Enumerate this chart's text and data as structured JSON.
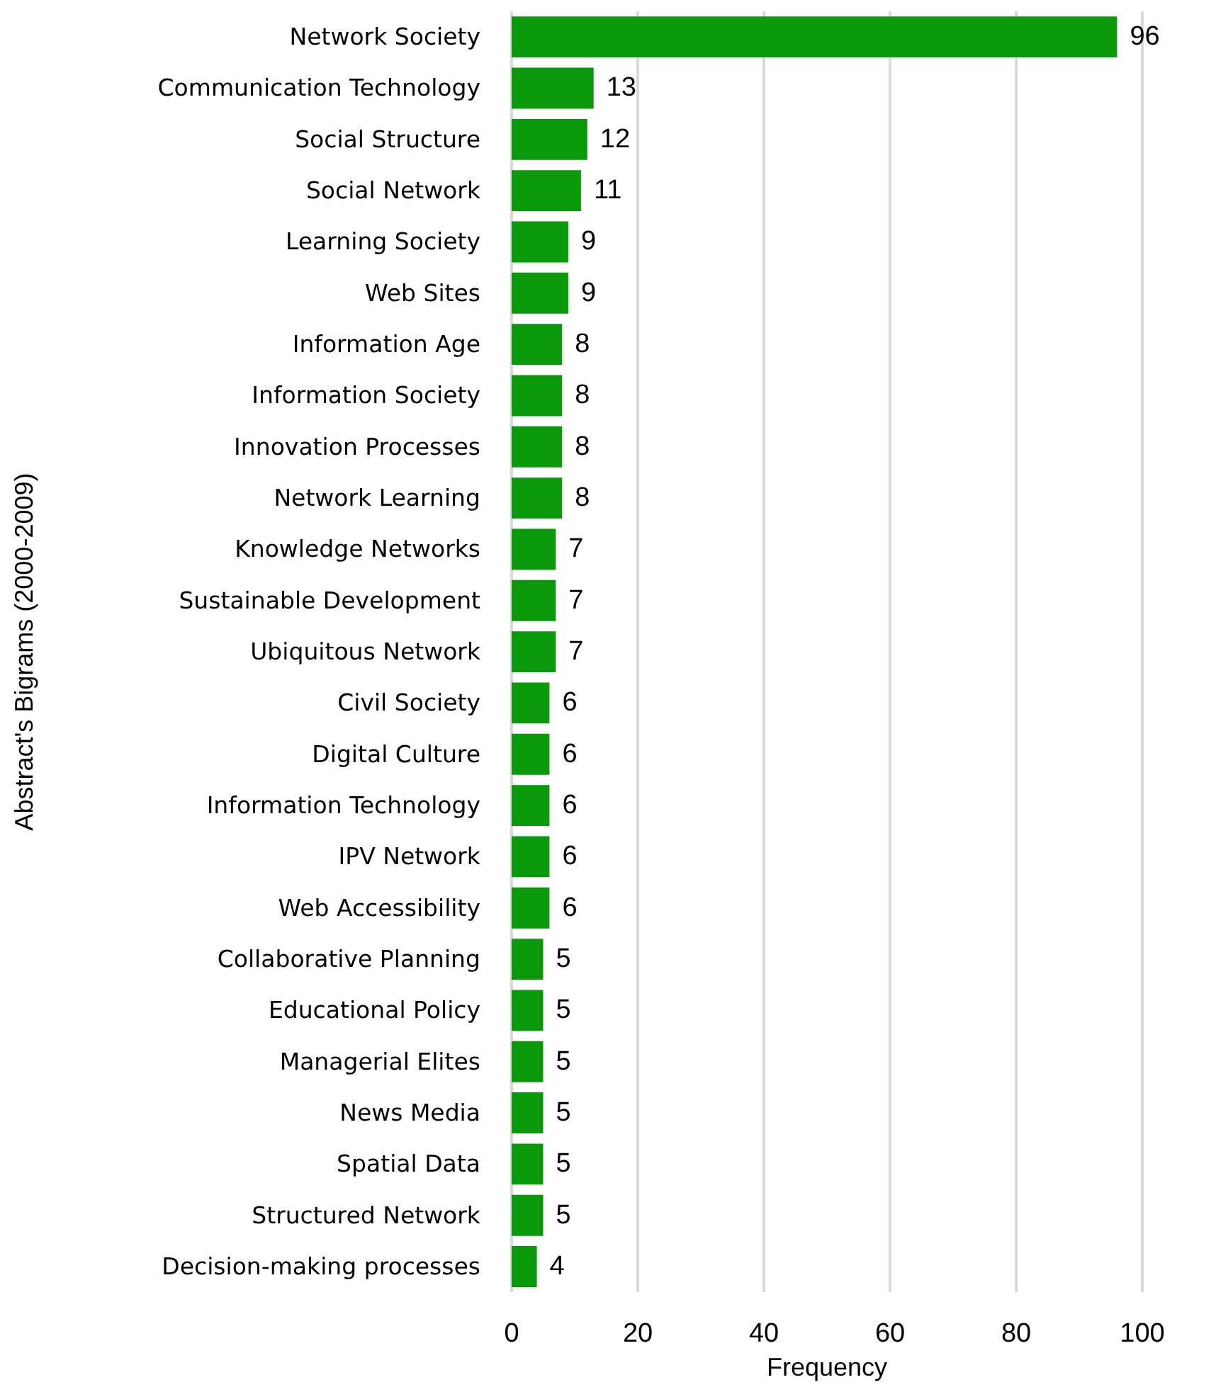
{
  "chart_data": {
    "type": "bar",
    "orientation": "horizontal",
    "xlabel": "Frequency",
    "ylabel": "Abstract's Bigrams (2000-2009)",
    "categories": [
      "Network Society",
      "Communication Technology",
      "Social Structure",
      "Social Network",
      "Learning Society",
      "Web Sites",
      "Information Age",
      "Information Society",
      "Innovation Processes",
      "Network Learning",
      "Knowledge Networks",
      "Sustainable Development",
      "Ubiquitous Network",
      "Civil Society",
      "Digital Culture",
      "Information Technology",
      "IPV Network",
      "Web Accessibility",
      "Collaborative Planning",
      "Educational Policy",
      "Managerial Elites",
      "News Media",
      "Spatial Data",
      "Structured Network",
      "Decision-making processes"
    ],
    "values": [
      96,
      13,
      12,
      11,
      9,
      9,
      8,
      8,
      8,
      8,
      7,
      7,
      7,
      6,
      6,
      6,
      6,
      6,
      5,
      5,
      5,
      5,
      5,
      5,
      4
    ],
    "color": "#0a990a",
    "xlim": [
      0,
      100
    ],
    "xticks": [
      0,
      20,
      40,
      60,
      80,
      100
    ],
    "grid": "x",
    "data_labels": true
  }
}
